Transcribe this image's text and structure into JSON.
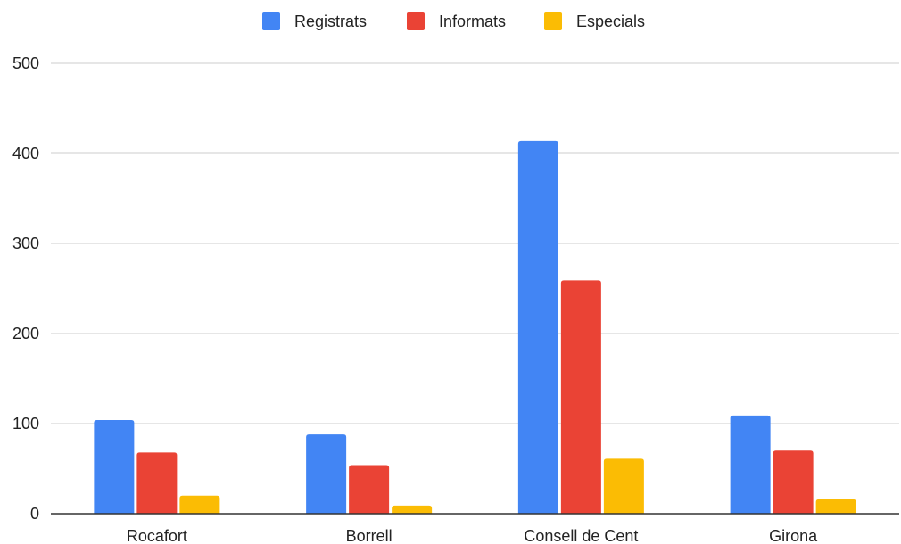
{
  "chart_data": {
    "type": "bar",
    "title": "",
    "xlabel": "",
    "ylabel": "",
    "ylim": [
      0,
      500
    ],
    "yticks": [
      0,
      100,
      200,
      300,
      400,
      500
    ],
    "grid": true,
    "legend_position": "top",
    "categories": [
      "Rocafort",
      "Borrell",
      "Consell de Cent",
      "Girona"
    ],
    "series": [
      {
        "name": "Registrats",
        "color": "#4285F4",
        "values": [
          104,
          88,
          414,
          109
        ]
      },
      {
        "name": "Informats",
        "color": "#EA4335",
        "values": [
          68,
          54,
          259,
          70
        ]
      },
      {
        "name": "Especials",
        "color": "#FBBC04",
        "values": [
          20,
          9,
          61,
          16
        ]
      }
    ]
  }
}
